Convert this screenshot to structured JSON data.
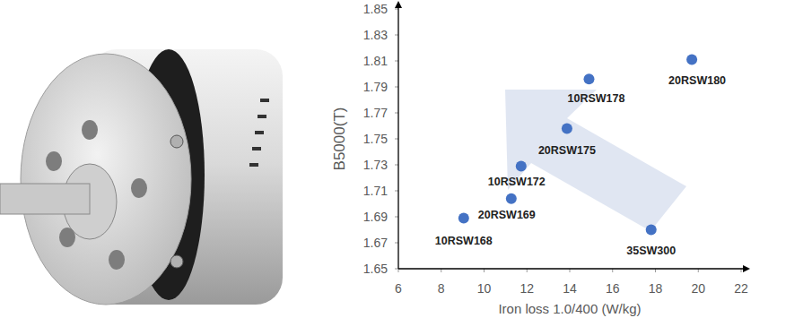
{
  "chart_data": {
    "type": "scatter",
    "xlabel": "Iron loss 1.0/400 (W/kg)",
    "ylabel": "B5000(T)",
    "labels": [
      "10RSW168",
      "20RSW169",
      "10RSW172",
      "20RSW175",
      "10RSW178",
      "20RSW180",
      "35SW300"
    ],
    "x": [
      9.05,
      11.27,
      11.73,
      13.87,
      14.9,
      19.7,
      17.8
    ],
    "values": [
      1.689,
      1.704,
      1.729,
      1.758,
      1.796,
      1.811,
      1.68
    ],
    "color": "#4472c4",
    "marker": "circle",
    "xlim": [
      6,
      22
    ],
    "xticks": [
      6,
      8,
      10,
      12,
      14,
      16,
      18,
      20,
      22
    ],
    "ylim": [
      1.65,
      1.85
    ],
    "yticks": [
      1.65,
      1.67,
      1.69,
      1.71,
      1.73,
      1.75,
      1.77,
      1.79,
      1.81,
      1.83,
      1.85
    ],
    "grid": false
  }
}
